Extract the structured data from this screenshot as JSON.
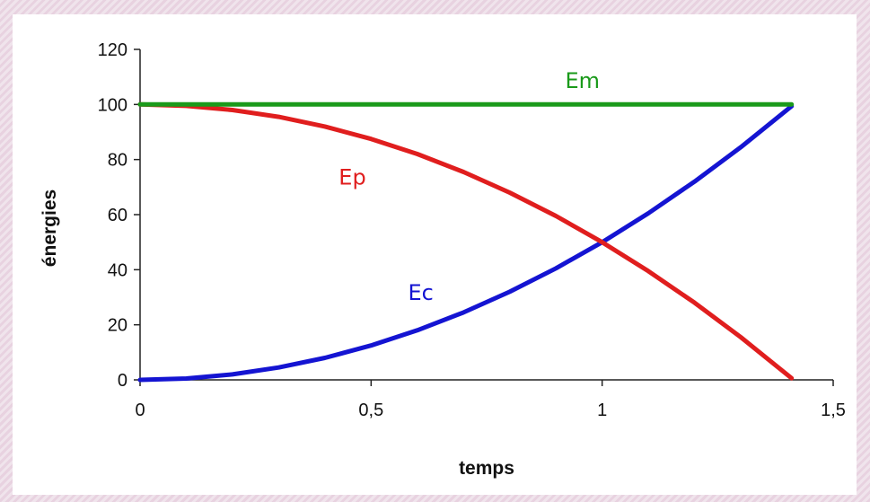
{
  "chart_data": {
    "type": "line",
    "xlabel": "temps",
    "ylabel": "énergies",
    "xlim": [
      0,
      1.5
    ],
    "ylim": [
      0,
      120
    ],
    "x_ticks": [
      "0",
      "0,5",
      "1",
      "1,5"
    ],
    "x_tick_values": [
      0,
      0.5,
      1,
      1.5
    ],
    "y_ticks": [
      "0",
      "20",
      "40",
      "60",
      "80",
      "100",
      "120"
    ],
    "y_tick_values": [
      0,
      20,
      40,
      60,
      80,
      100,
      120
    ],
    "grid": false,
    "series": [
      {
        "name": "Em",
        "color": "#1a9a1a",
        "x": [
          0,
          0.1,
          0.2,
          0.3,
          0.4,
          0.5,
          0.6,
          0.7,
          0.8,
          0.9,
          1.0,
          1.1,
          1.2,
          1.3,
          1.41
        ],
        "y": [
          100,
          100,
          100,
          100,
          100,
          100,
          100,
          100,
          100,
          100,
          100,
          100,
          100,
          100,
          100
        ]
      },
      {
        "name": "Ep",
        "color": "#e01e1e",
        "x": [
          0,
          0.1,
          0.2,
          0.3,
          0.4,
          0.5,
          0.6,
          0.7,
          0.8,
          0.9,
          1.0,
          1.1,
          1.2,
          1.3,
          1.41
        ],
        "y": [
          100,
          99.5,
          98,
          95.5,
          92,
          87.5,
          82,
          75.5,
          68,
          59.5,
          50,
          39.5,
          28,
          15.5,
          0.6
        ]
      },
      {
        "name": "Ec",
        "color": "#1414d2",
        "x": [
          0,
          0.1,
          0.2,
          0.3,
          0.4,
          0.5,
          0.6,
          0.7,
          0.8,
          0.9,
          1.0,
          1.1,
          1.2,
          1.3,
          1.41
        ],
        "y": [
          0,
          0.5,
          2,
          4.5,
          8,
          12.5,
          18,
          24.5,
          32,
          40.5,
          50,
          60.5,
          72,
          84.5,
          99.4
        ]
      }
    ]
  }
}
